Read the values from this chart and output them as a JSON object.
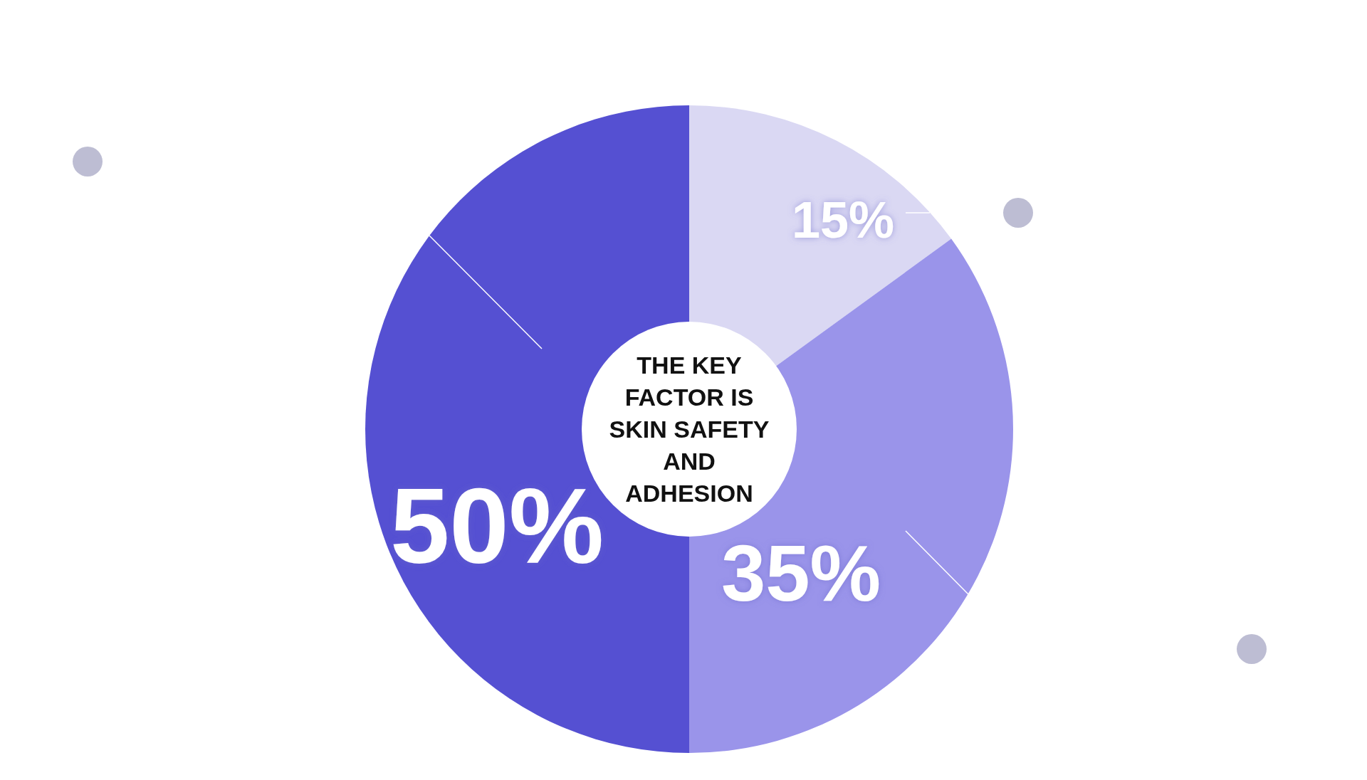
{
  "chart_data": {
    "type": "donut",
    "title": "THE KEY FACTOR IS SKIN SAFETY AND ADHESION",
    "categories": [
      null,
      null,
      null
    ],
    "values": [
      15,
      35,
      50
    ],
    "colors": [
      "#dad8f3",
      "#9a94ea",
      "#5550d2"
    ],
    "value_labels": [
      "15%",
      "35%",
      "50%"
    ]
  }
}
